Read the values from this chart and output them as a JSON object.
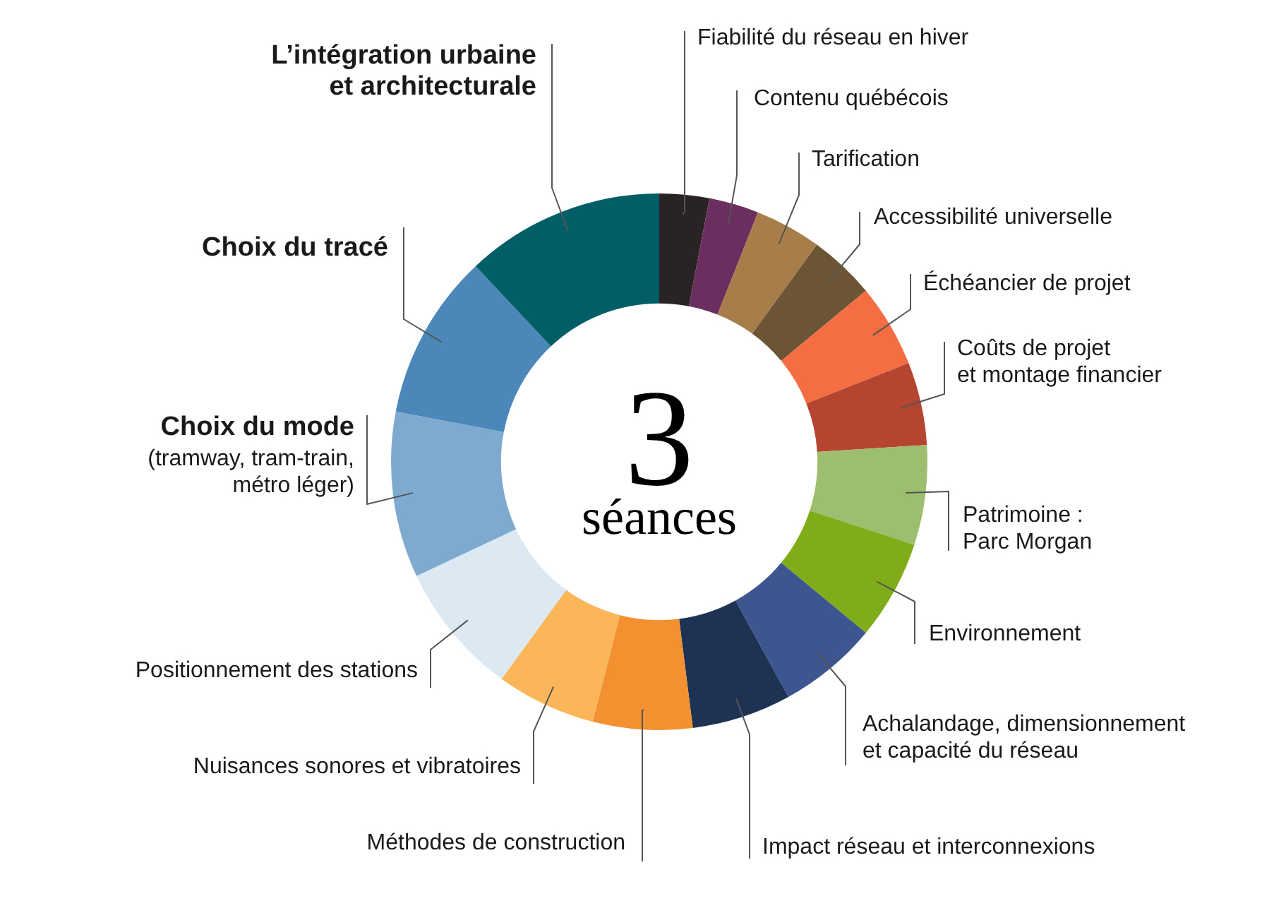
{
  "chart_data": {
    "type": "donut",
    "categories": [
      "Fiabilité du réseau en hiver",
      "Contenu québécois",
      "Tarification",
      "Accessibilité universelle",
      "Échéancier de projet",
      "Coûts de projet\net montage financier",
      "Patrimoine :\nParc Morgan",
      "Environnement",
      "Achalandage, dimensionnement\net capacité du réseau",
      "Impact réseau et interconnexions",
      "Méthodes de construction",
      "Nuisances sonores et vibratoires",
      "Positionnement des stations",
      "Choix du mode\n(tramway, tram-train,\nmétro léger)",
      "Choix du tracé",
      "L’intégration urbaine\net architecturale"
    ],
    "values": [
      3,
      3,
      4,
      4,
      5,
      5,
      6,
      6,
      6,
      6,
      6,
      6,
      8,
      10,
      10,
      12
    ],
    "colors": [
      "#2a2326",
      "#6a2f5e",
      "#a77e4a",
      "#6b5535",
      "#f46d43",
      "#b54531",
      "#9dbd6f",
      "#7fac18",
      "#3d5690",
      "#1e3353",
      "#f39131",
      "#fbb65a",
      "#dde9f2",
      "#7eaad0",
      "#4c87b9",
      "#005f66"
    ],
    "annotations": [
      "3",
      "séances"
    ]
  }
}
